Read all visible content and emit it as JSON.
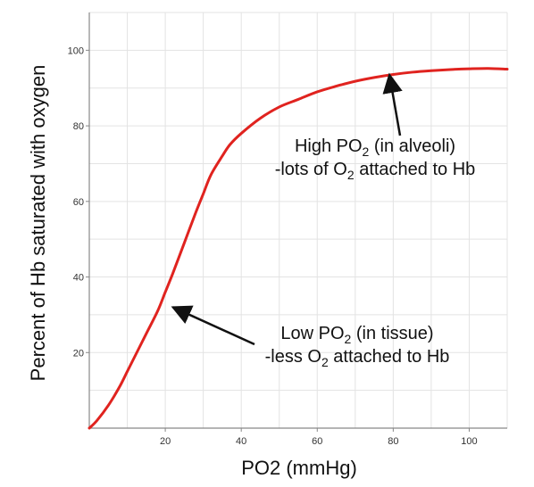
{
  "chart_data": {
    "type": "line",
    "xlabel": "PO2 (mmHg)",
    "ylabel": "Percent of Hb saturated with oxygen",
    "xlim": [
      0,
      110
    ],
    "ylim": [
      0,
      110
    ],
    "x_ticks": [
      20,
      40,
      60,
      80,
      100
    ],
    "y_ticks": [
      20,
      40,
      60,
      80,
      100
    ],
    "grid": true,
    "color": "#e0231f",
    "series": [
      {
        "x": [
          0,
          2,
          5,
          8,
          10,
          12,
          15,
          18,
          20,
          22,
          25,
          28,
          30,
          32,
          35,
          37,
          40,
          45,
          50,
          55,
          60,
          65,
          70,
          75,
          80,
          85,
          90,
          95,
          100,
          105,
          110
        ],
        "y": [
          0,
          2,
          6,
          11,
          15,
          19,
          25,
          31,
          36,
          41,
          49,
          57,
          62,
          67,
          72,
          75,
          78,
          82,
          85,
          87,
          89,
          90.5,
          91.8,
          92.8,
          93.6,
          94.2,
          94.6,
          94.9,
          95.1,
          95.2,
          95
        ]
      }
    ],
    "annotations": [
      {
        "lines": [
          {
            "parts": [
              {
                "text": "High PO"
              },
              {
                "text": "2",
                "sub": true
              },
              {
                "text": " (in alveoli)"
              }
            ]
          },
          {
            "parts": [
              {
                "text": "-lots of O"
              },
              {
                "text": "2",
                "sub": true
              },
              {
                "text": " attached to Hb"
              }
            ]
          }
        ],
        "arrow_to": [
          79,
          93.5
        ]
      },
      {
        "lines": [
          {
            "parts": [
              {
                "text": "Low PO"
              },
              {
                "text": "2",
                "sub": true
              },
              {
                "text": " (in tissue)"
              }
            ]
          },
          {
            "parts": [
              {
                "text": "-less O"
              },
              {
                "text": "2",
                "sub": true
              },
              {
                "text": " attached to Hb"
              }
            ]
          }
        ],
        "arrow_to": [
          22,
          32
        ]
      }
    ]
  }
}
